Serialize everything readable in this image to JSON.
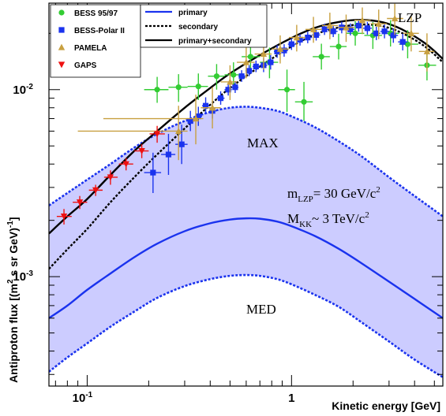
{
  "chart_data": {
    "type": "scatter",
    "xlabel": "Kinetic energy [GeV]",
    "ylabel_main": "Antiproton flux [(m",
    "ylabel_sup1": "2",
    "ylabel_mid": " s sr GeV)",
    "ylabel_sup2": "-1",
    "ylabel_end": "]",
    "x_scale": "log",
    "y_scale": "log",
    "xlim": [
      0.065,
      5.5
    ],
    "ylim": [
      0.00026,
      0.029
    ],
    "x_ticks": [
      {
        "v": 0.1,
        "base": "10",
        "exp": "-1"
      },
      {
        "v": 1,
        "base": "1",
        "exp": ""
      }
    ],
    "y_ticks": [
      {
        "v": 0.001,
        "base": "10",
        "exp": "-3"
      },
      {
        "v": 0.01,
        "base": "10",
        "exp": "-2"
      }
    ],
    "grid": false,
    "legend_left": {
      "placement": "top-left",
      "entries": [
        {
          "label": "BESS 95/97",
          "marker": "circle",
          "color": "#33cc33"
        },
        {
          "label": "BESS-Polar II",
          "marker": "square",
          "color": "#1a33ee"
        },
        {
          "label": "PAMELA",
          "marker": "triangle-up",
          "color": "#c8a040"
        },
        {
          "label": "GAPS",
          "marker": "triangle-down",
          "color": "#ee1111"
        }
      ]
    },
    "legend_right": {
      "placement": "top-center",
      "entries": [
        {
          "label": "primary",
          "line": "solid",
          "color": "#1a33ee"
        },
        {
          "label": "secondary",
          "line": "dotted",
          "color": "#000000"
        },
        {
          "label": "primary+secondary",
          "line": "solid",
          "color": "#000000"
        }
      ]
    },
    "annotations": {
      "lzp": "LZP",
      "max": "MAX",
      "med": "MED",
      "mass_m": "m",
      "mass_m_sub": "LZP",
      "mass_m_val": "= 30 GeV/c",
      "mass_m_sup": "2",
      "mass_M": "M",
      "mass_M_sub": "KK",
      "mass_M_val": "~ 3 TeV/c",
      "mass_M_sup": "2"
    },
    "band": {
      "color": "#ccccff",
      "edge_color": "#1a33ee"
    },
    "curves": {
      "max": {
        "x": [
          0.065,
          0.08,
          0.1,
          0.13,
          0.17,
          0.22,
          0.3,
          0.4,
          0.5,
          0.6,
          0.7,
          0.85,
          1.0,
          1.3,
          1.7,
          2.2,
          3.0,
          4.0,
          5.5
        ],
        "y": [
          0.0024,
          0.0028,
          0.0033,
          0.004,
          0.0049,
          0.0058,
          0.0068,
          0.0076,
          0.008,
          0.0081,
          0.008,
          0.0077,
          0.0072,
          0.0063,
          0.0053,
          0.0044,
          0.0034,
          0.0027,
          0.0021
        ]
      },
      "primary": {
        "x": [
          0.065,
          0.08,
          0.1,
          0.13,
          0.17,
          0.22,
          0.3,
          0.4,
          0.5,
          0.6,
          0.7,
          0.85,
          1.0,
          1.3,
          1.7,
          2.2,
          3.0,
          4.0,
          5.5
        ],
        "y": [
          0.0006,
          0.0007,
          0.00085,
          0.00104,
          0.00127,
          0.0015,
          0.00175,
          0.00193,
          0.00202,
          0.00205,
          0.00204,
          0.00197,
          0.00186,
          0.00165,
          0.00141,
          0.00118,
          0.00094,
          0.00076,
          0.0006
        ]
      },
      "med": {
        "x": [
          0.065,
          0.08,
          0.1,
          0.13,
          0.17,
          0.22,
          0.3,
          0.4,
          0.5,
          0.6,
          0.7,
          0.85,
          1.0,
          1.3,
          1.7,
          2.2,
          3.0,
          4.0,
          5.5
        ],
        "y": [
          0.00031,
          0.00037,
          0.00044,
          0.00054,
          0.00065,
          0.00077,
          0.00089,
          0.00097,
          0.00101,
          0.00102,
          0.00101,
          0.00097,
          0.00091,
          0.0008,
          0.00069,
          0.00057,
          0.00045,
          0.00036,
          0.00029
        ]
      },
      "secondary": {
        "x": [
          0.065,
          0.08,
          0.1,
          0.13,
          0.17,
          0.22,
          0.3,
          0.4,
          0.5,
          0.7,
          1.0,
          1.3,
          1.7,
          2.2,
          2.8,
          3.5,
          4.5,
          5.5
        ],
        "y": [
          0.0011,
          0.0014,
          0.0018,
          0.0025,
          0.0034,
          0.0045,
          0.0062,
          0.0083,
          0.0102,
          0.0133,
          0.017,
          0.0197,
          0.0215,
          0.0223,
          0.0218,
          0.02,
          0.017,
          0.014
        ]
      },
      "total": {
        "x": [
          0.065,
          0.08,
          0.1,
          0.13,
          0.17,
          0.22,
          0.3,
          0.4,
          0.5,
          0.7,
          1.0,
          1.3,
          1.7,
          2.2,
          2.8,
          3.5,
          4.5,
          5.5
        ],
        "y": [
          0.0017,
          0.0021,
          0.0026,
          0.0035,
          0.0047,
          0.006,
          0.008,
          0.0102,
          0.0122,
          0.0153,
          0.0189,
          0.0214,
          0.023,
          0.0236,
          0.0229,
          0.0209,
          0.0177,
          0.0146
        ]
      }
    },
    "series": [
      {
        "name": "BESS 95/97",
        "marker": "circle",
        "color": "#33cc33",
        "x": [
          0.22,
          0.28,
          0.35,
          0.43,
          0.52,
          0.63,
          0.78,
          0.95,
          1.15,
          1.4,
          1.7,
          2.05,
          2.5,
          3.05,
          3.7,
          4.6
        ],
        "y": [
          0.01,
          0.0103,
          0.0104,
          0.0118,
          0.012,
          0.015,
          0.014,
          0.01,
          0.0086,
          0.015,
          0.017,
          0.02,
          0.0195,
          0.02,
          0.0175,
          0.0135
        ],
        "ylo": [
          0.0085,
          0.0086,
          0.0088,
          0.01,
          0.0102,
          0.0128,
          0.0115,
          0.0076,
          0.0068,
          0.0128,
          0.0145,
          0.0172,
          0.0165,
          0.017,
          0.0147,
          0.0112
        ],
        "yhi": [
          0.0117,
          0.0121,
          0.0122,
          0.0137,
          0.014,
          0.0175,
          0.0168,
          0.0128,
          0.011,
          0.0176,
          0.0199,
          0.0232,
          0.023,
          0.0235,
          0.0208,
          0.0162
        ],
        "xlo": [
          0.19,
          0.25,
          0.31,
          0.39,
          0.47,
          0.57,
          0.7,
          0.86,
          1.04,
          1.27,
          1.54,
          1.86,
          2.27,
          2.77,
          3.36,
          4.17
        ],
        "xhi": [
          0.25,
          0.31,
          0.39,
          0.47,
          0.57,
          0.7,
          0.86,
          1.04,
          1.27,
          1.54,
          1.86,
          2.27,
          2.77,
          3.36,
          4.17,
          5.1
        ]
      },
      {
        "name": "BESS-Polar II",
        "marker": "square",
        "color": "#1a33ee",
        "x": [
          0.21,
          0.25,
          0.29,
          0.32,
          0.35,
          0.38,
          0.41,
          0.45,
          0.49,
          0.53,
          0.57,
          0.62,
          0.67,
          0.73,
          0.79,
          0.85,
          0.92,
          1.0,
          1.1,
          1.2,
          1.32,
          1.45,
          1.6,
          1.76,
          1.94,
          2.13,
          2.35,
          2.6,
          2.85,
          3.15,
          3.5
        ],
        "y": [
          0.0036,
          0.0045,
          0.0051,
          0.0068,
          0.0072,
          0.0082,
          0.0077,
          0.009,
          0.01,
          0.0103,
          0.0118,
          0.0126,
          0.0133,
          0.0135,
          0.014,
          0.016,
          0.0162,
          0.0175,
          0.0185,
          0.019,
          0.0196,
          0.021,
          0.0205,
          0.0215,
          0.021,
          0.022,
          0.0213,
          0.02,
          0.0205,
          0.0195,
          0.018
        ],
        "ylo": [
          0.0028,
          0.0035,
          0.004,
          0.006,
          0.0064,
          0.0074,
          0.007,
          0.0083,
          0.0093,
          0.0096,
          0.011,
          0.0118,
          0.0124,
          0.0124,
          0.0128,
          0.0148,
          0.015,
          0.0163,
          0.0172,
          0.0177,
          0.0183,
          0.0196,
          0.0191,
          0.02,
          0.0195,
          0.0204,
          0.0197,
          0.0184,
          0.0188,
          0.0178,
          0.0162
        ],
        "yhi": [
          0.0046,
          0.0058,
          0.0065,
          0.0077,
          0.0081,
          0.0091,
          0.0085,
          0.0098,
          0.0108,
          0.0111,
          0.0127,
          0.0135,
          0.0143,
          0.0147,
          0.0153,
          0.0173,
          0.0175,
          0.0188,
          0.0198,
          0.0204,
          0.021,
          0.0225,
          0.022,
          0.0231,
          0.0226,
          0.0237,
          0.023,
          0.0217,
          0.0223,
          0.0213,
          0.0199
        ],
        "xlo": [
          0.19,
          0.23,
          0.27,
          0.305,
          0.335,
          0.365,
          0.395,
          0.43,
          0.47,
          0.51,
          0.55,
          0.595,
          0.645,
          0.7,
          0.76,
          0.82,
          0.885,
          0.96,
          1.05,
          1.15,
          1.26,
          1.38,
          1.52,
          1.68,
          1.85,
          2.03,
          2.24,
          2.47,
          2.72,
          3.0,
          3.32
        ],
        "xhi": [
          0.23,
          0.27,
          0.31,
          0.335,
          0.365,
          0.395,
          0.43,
          0.47,
          0.51,
          0.55,
          0.595,
          0.645,
          0.7,
          0.76,
          0.82,
          0.885,
          0.96,
          1.05,
          1.15,
          1.26,
          1.38,
          1.52,
          1.68,
          1.85,
          2.03,
          2.24,
          2.47,
          2.72,
          3.0,
          3.32,
          3.7
        ]
      },
      {
        "name": "PAMELA",
        "marker": "triangle-up",
        "color": "#c8a040",
        "x": [
          0.28,
          0.34,
          0.41,
          0.5,
          0.6,
          0.73,
          0.88,
          1.06,
          1.28,
          1.54,
          1.85,
          2.22,
          2.67,
          3.2,
          3.85,
          4.6
        ],
        "y": [
          0.006,
          0.007,
          0.008,
          0.011,
          0.014,
          0.0155,
          0.0165,
          0.019,
          0.021,
          0.022,
          0.0215,
          0.0235,
          0.0225,
          0.024,
          0.02,
          0.016
        ],
        "ylo": [
          0.0042,
          0.0051,
          0.0062,
          0.0088,
          0.0115,
          0.0128,
          0.0138,
          0.016,
          0.0178,
          0.0186,
          0.018,
          0.0198,
          0.0186,
          0.0196,
          0.016,
          0.0125
        ],
        "yhi": [
          0.0082,
          0.0094,
          0.0103,
          0.0135,
          0.0168,
          0.0185,
          0.0195,
          0.0222,
          0.0245,
          0.0258,
          0.0252,
          0.0275,
          0.0268,
          0.0288,
          0.0245,
          0.02
        ],
        "xlo": [
          0.09,
          0.12,
          0.36,
          0.45,
          0.54,
          0.66,
          0.8,
          0.97,
          1.17,
          1.41,
          1.69,
          2.03,
          2.44,
          2.93,
          3.52,
          4.2
        ],
        "xhi": [
          0.31,
          0.37,
          0.45,
          0.54,
          0.66,
          0.8,
          0.97,
          1.17,
          1.41,
          1.69,
          2.03,
          2.44,
          2.93,
          3.52,
          4.2,
          5.0
        ]
      },
      {
        "name": "GAPS",
        "marker": "triangle-down",
        "color": "#ee1111",
        "x": [
          0.077,
          0.092,
          0.11,
          0.13,
          0.155,
          0.185,
          0.22
        ],
        "y": [
          0.0021,
          0.0025,
          0.0029,
          0.0034,
          0.004,
          0.0047,
          0.0058
        ],
        "ylo": [
          0.0019,
          0.0023,
          0.0027,
          0.0031,
          0.0037,
          0.0043,
          0.0052
        ],
        "yhi": [
          0.0023,
          0.0027,
          0.0031,
          0.0037,
          0.0043,
          0.0051,
          0.0064
        ],
        "xlo": [
          0.071,
          0.085,
          0.102,
          0.121,
          0.143,
          0.17,
          0.202
        ],
        "xhi": [
          0.084,
          0.1,
          0.119,
          0.141,
          0.168,
          0.2,
          0.24
        ]
      }
    ]
  }
}
